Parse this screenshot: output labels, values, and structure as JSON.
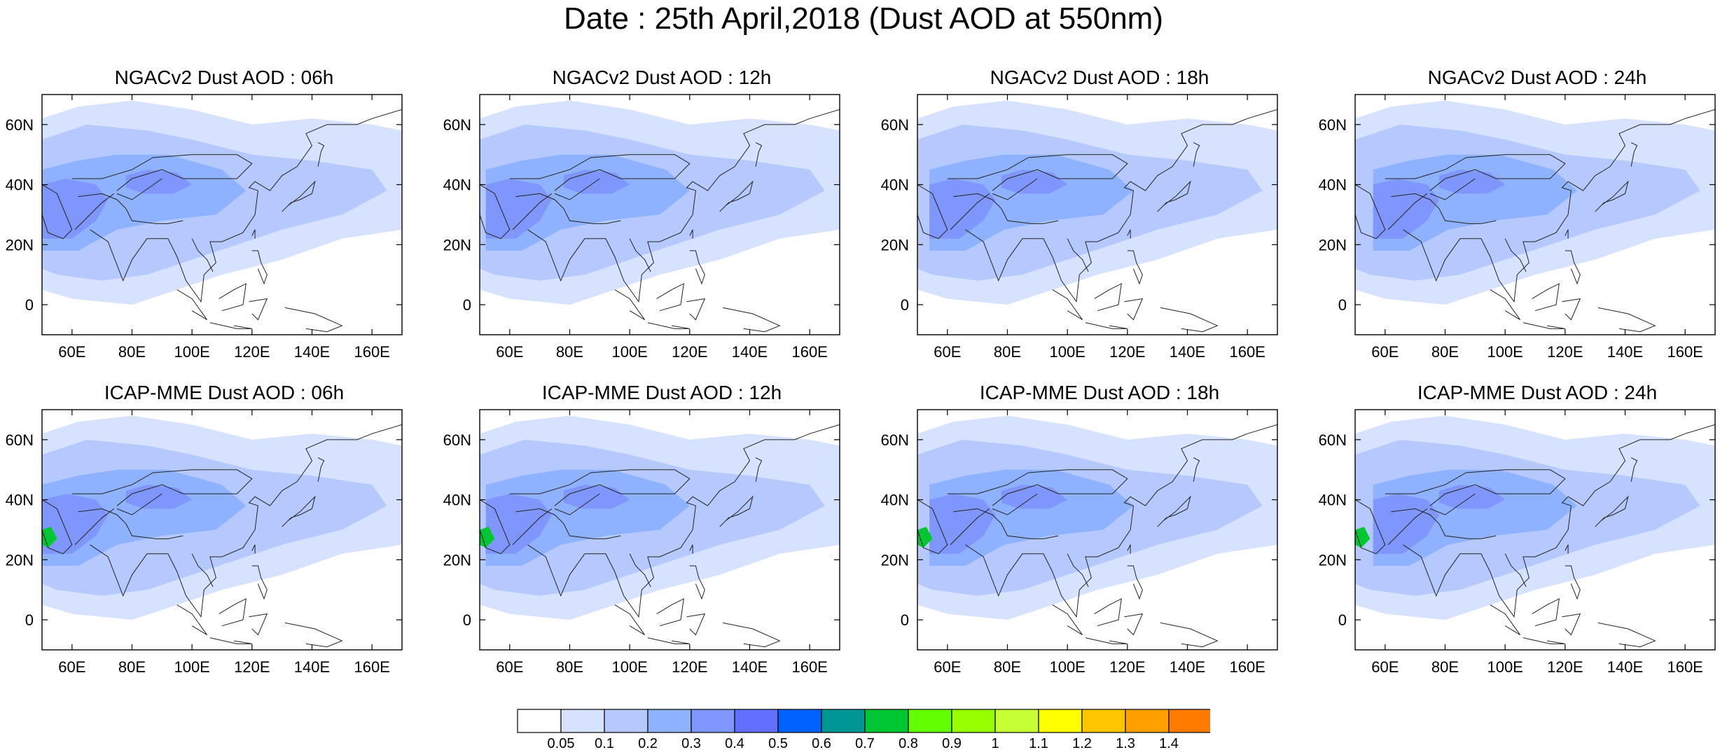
{
  "title": "Date : 25th April,2018 (Dust AOD at 550nm)",
  "map_extent": {
    "lon": [
      50,
      170
    ],
    "lat": [
      -10,
      70
    ]
  },
  "lon_ticks": [
    "60E",
    "80E",
    "100E",
    "120E",
    "140E",
    "160E"
  ],
  "lat_ticks": [
    "60N",
    "40N",
    "20N",
    "0"
  ],
  "panels": [
    {
      "title": "NGACv2 Dust AOD : 06h",
      "model": "NGACv2",
      "hour": "06h"
    },
    {
      "title": "NGACv2 Dust AOD : 12h",
      "model": "NGACv2",
      "hour": "12h"
    },
    {
      "title": "NGACv2 Dust AOD : 18h",
      "model": "NGACv2",
      "hour": "18h"
    },
    {
      "title": "NGACv2 Dust AOD : 24h",
      "model": "NGACv2",
      "hour": "24h"
    },
    {
      "title": "ICAP-MME Dust AOD : 06h",
      "model": "ICAP-MME",
      "hour": "06h"
    },
    {
      "title": "ICAP-MME Dust AOD : 12h",
      "model": "ICAP-MME",
      "hour": "12h"
    },
    {
      "title": "ICAP-MME Dust AOD : 18h",
      "model": "ICAP-MME",
      "hour": "18h"
    },
    {
      "title": "ICAP-MME Dust AOD : 24h",
      "model": "ICAP-MME",
      "hour": "24h"
    }
  ],
  "colorbar": {
    "labels": [
      "0.05",
      "0.1",
      "0.2",
      "0.3",
      "0.4",
      "0.5",
      "0.6",
      "0.7",
      "0.8",
      "0.9",
      "1",
      "1.1",
      "1.2",
      "1.3",
      "1.4"
    ],
    "colors": [
      "#ffffff",
      "#d6e2ff",
      "#b5c9ff",
      "#8eb2ff",
      "#7f96ff",
      "#6370ff",
      "#0063ff",
      "#009696",
      "#00c633",
      "#63ff00",
      "#96ff00",
      "#c6ff33",
      "#ffff00",
      "#ffc600",
      "#ffa000",
      "#ff7c00",
      "#ff1900"
    ]
  }
}
